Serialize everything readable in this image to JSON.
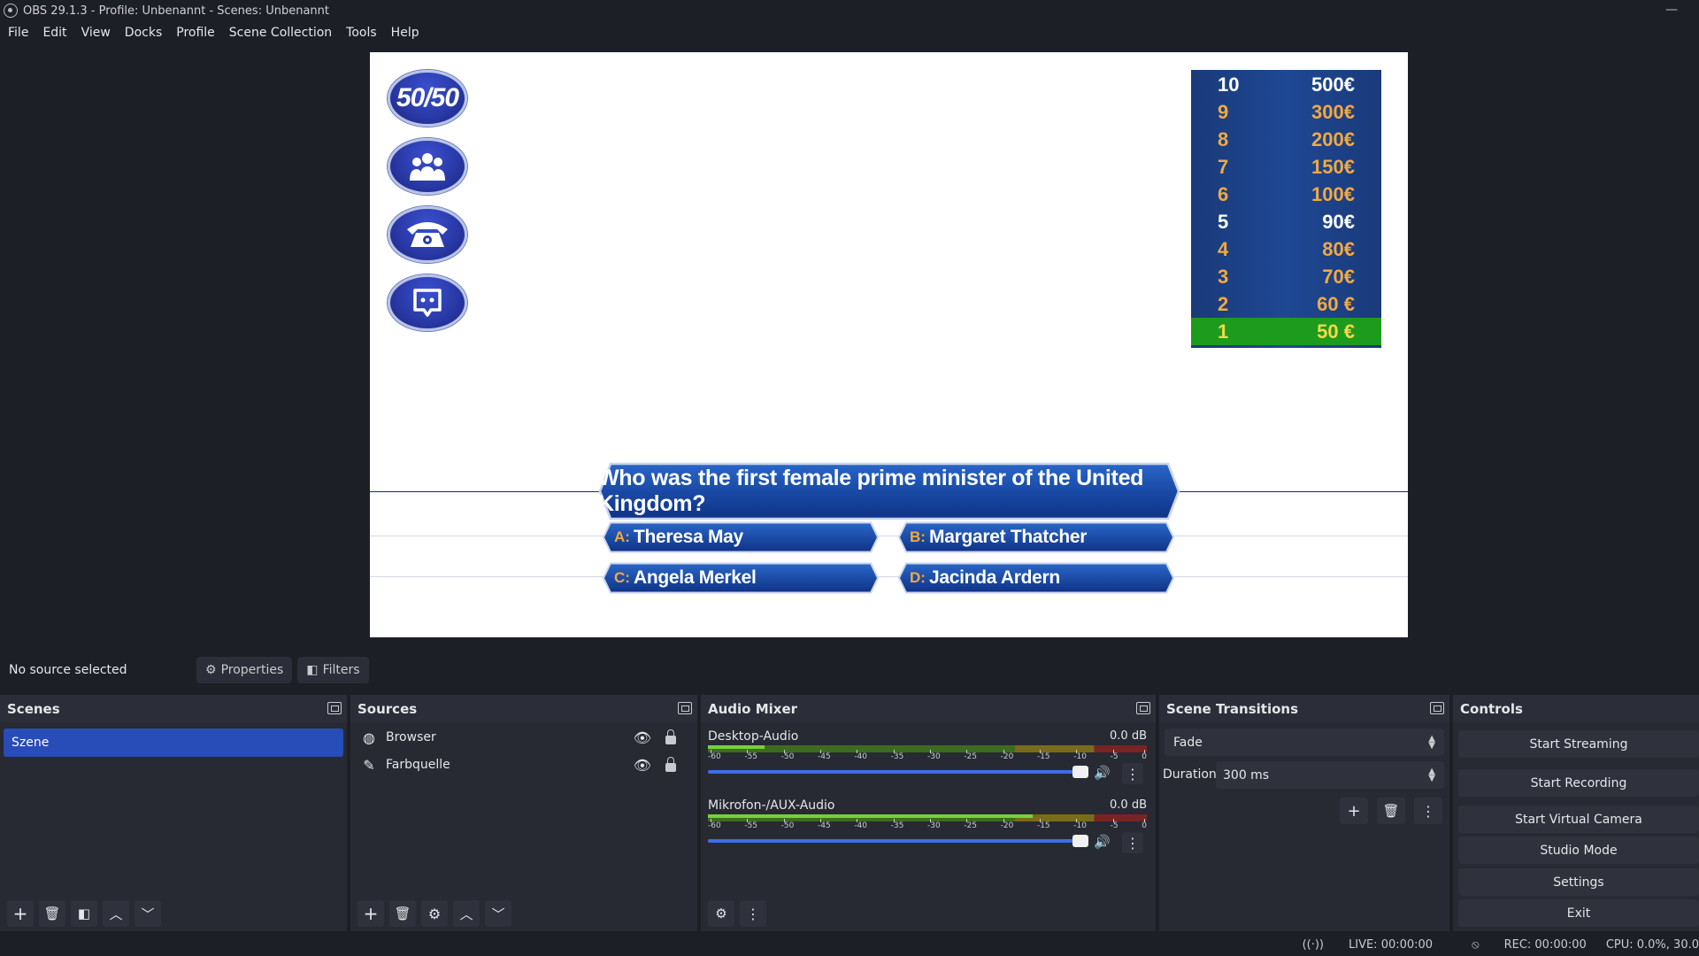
{
  "window": {
    "title": "OBS 29.1.3 - Profile: Unbenannt - Scenes: Unbenannt",
    "minimize": "—"
  },
  "menu": [
    "File",
    "Edit",
    "View",
    "Docks",
    "Profile",
    "Scene Collection",
    "Tools",
    "Help"
  ],
  "preview": {
    "lifelines": [
      {
        "name": "fifty-fifty",
        "label": "50/50"
      },
      {
        "name": "ask-audience-icon",
        "label": ""
      },
      {
        "name": "phone-a-friend-icon",
        "label": ""
      },
      {
        "name": "chat-icon",
        "label": ""
      }
    ],
    "ladder": [
      {
        "level": "10",
        "amount": "500€",
        "milestone": true,
        "current": false
      },
      {
        "level": "9",
        "amount": "300€",
        "milestone": false,
        "current": false
      },
      {
        "level": "8",
        "amount": "200€",
        "milestone": false,
        "current": false
      },
      {
        "level": "7",
        "amount": "150€",
        "milestone": false,
        "current": false
      },
      {
        "level": "6",
        "amount": "100€",
        "milestone": false,
        "current": false
      },
      {
        "level": "5",
        "amount": "90€",
        "milestone": true,
        "current": false
      },
      {
        "level": "4",
        "amount": "80€",
        "milestone": false,
        "current": false
      },
      {
        "level": "3",
        "amount": "70€",
        "milestone": false,
        "current": false
      },
      {
        "level": "2",
        "amount": "60 €",
        "milestone": false,
        "current": false
      },
      {
        "level": "1",
        "amount": "50 €",
        "milestone": false,
        "current": true
      }
    ],
    "question": "Who was the first female prime minister of the United Kingdom?",
    "answers": {
      "a": {
        "letter": "A:",
        "text": "Theresa May"
      },
      "b": {
        "letter": "B:",
        "text": "Margaret Thatcher"
      },
      "c": {
        "letter": "C:",
        "text": "Angela Merkel"
      },
      "d": {
        "letter": "D:",
        "text": "Jacinda Ardern"
      }
    },
    "colors": {
      "ladder_bg": "#1e4894",
      "ladder_text": "#f2a940",
      "current_row": "#1d9b1d",
      "current_text": "#f7d84a",
      "hex_fill": "#1e4fa8"
    }
  },
  "source_bar": {
    "no_source": "No source selected",
    "properties": "Properties",
    "filters": "Filters"
  },
  "scenes": {
    "title": "Scenes",
    "items": [
      "Szene"
    ]
  },
  "sources": {
    "title": "Sources",
    "items": [
      {
        "name": "Browser",
        "icon": "globe-icon"
      },
      {
        "name": "Farbquelle",
        "icon": "brush-icon"
      }
    ]
  },
  "mixer": {
    "title": "Audio Mixer",
    "channels": [
      {
        "name": "Desktop-Audio",
        "db": "0.0 dB",
        "level": 0.13,
        "volume": 1.0
      },
      {
        "name": "Mikrofon-/AUX-Audio",
        "db": "0.0 dB",
        "level": 0.74,
        "volume": 1.0
      }
    ],
    "ticks": [
      "-60",
      "-55",
      "-50",
      "-45",
      "-40",
      "-35",
      "-30",
      "-25",
      "-20",
      "-15",
      "-10",
      "-5",
      "0"
    ]
  },
  "transitions": {
    "title": "Scene Transitions",
    "selected": "Fade",
    "duration_label": "Duration",
    "duration_value": "300 ms"
  },
  "controls": {
    "title": "Controls",
    "buttons": [
      "Start Streaming",
      "Start Recording",
      "Start Virtual Camera",
      "Studio Mode",
      "Settings",
      "Exit"
    ]
  },
  "status": {
    "live": "LIVE: 00:00:00",
    "rec": "REC: 00:00:00",
    "cpu": "CPU: 0.0%, 30.0"
  }
}
